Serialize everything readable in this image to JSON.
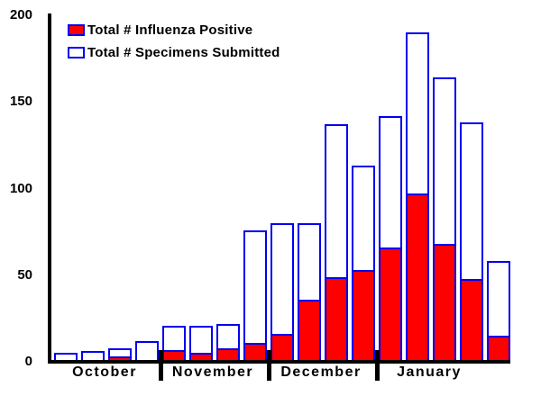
{
  "chart_data": {
    "type": "bar",
    "title": "",
    "xlabel": "",
    "ylabel": "",
    "legend_position": "top-left-inside",
    "grid": false,
    "legend": [
      {
        "label": "Total # Influenza Positive",
        "series": "positive",
        "fill": "#ff0000",
        "border": "#0000f0"
      },
      {
        "label": "Total # Specimens Submitted",
        "series": "specimens",
        "fill": "#ffffff",
        "border": "#0000f0"
      }
    ],
    "y_axis": {
      "min": 0,
      "max": 200,
      "ticks": [
        0,
        50,
        100,
        150,
        200
      ]
    },
    "categories": [
      "October",
      "November",
      "December",
      "January",
      ""
    ],
    "groups": [
      {
        "label": "October",
        "specimens": [
          5,
          6,
          8,
          12
        ],
        "positive": [
          0,
          0,
          3,
          0
        ]
      },
      {
        "label": "November",
        "specimens": [
          21,
          21,
          22,
          76
        ],
        "positive": [
          7,
          5,
          8,
          11
        ]
      },
      {
        "label": "December",
        "specimens": [
          80,
          80,
          137,
          113
        ],
        "positive": [
          16,
          36,
          49,
          53
        ]
      },
      {
        "label": "January",
        "specimens": [
          142,
          190,
          164,
          138
        ],
        "positive": [
          66,
          97,
          68,
          48
        ]
      },
      {
        "label": "",
        "specimens": [
          58
        ],
        "positive": [
          15
        ]
      }
    ],
    "colors": {
      "positive_fill": "#ff0000",
      "specimens_fill": "#ffffff",
      "bar_border": "#0000f0",
      "axis": "#000000",
      "text": "#000000",
      "background": "#ffffff"
    }
  }
}
